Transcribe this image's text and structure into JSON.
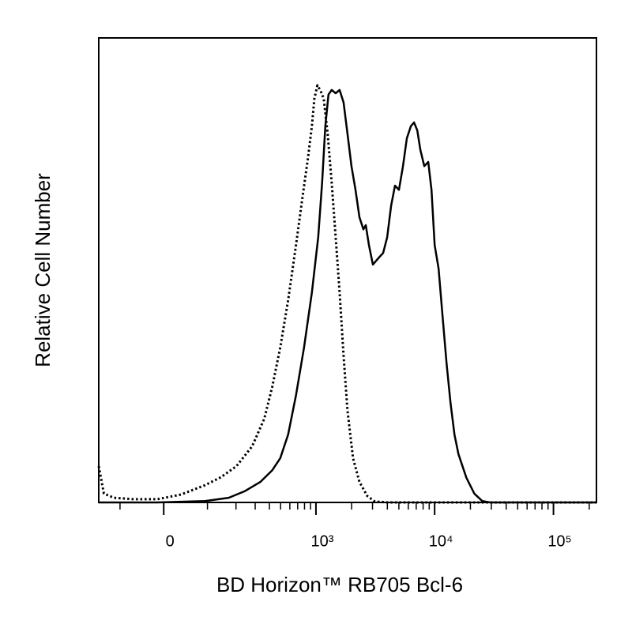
{
  "chart_data": {
    "type": "line",
    "xlabel": "BD Horizon™ RB705 Bcl-6",
    "ylabel": "Relative Cell Number",
    "xscale": "biexponential",
    "xlim": [
      -170,
      230000
    ],
    "ylim": [
      0,
      100
    ],
    "xticks": [
      0,
      {
        "value": 1000,
        "label": "10³"
      },
      {
        "value": 10000,
        "label": "10⁴"
      },
      {
        "value": 100000,
        "label": "10⁵"
      }
    ],
    "minor_xticks": [
      -100,
      100,
      200,
      300,
      400,
      500,
      600,
      700,
      800,
      900,
      2000,
      3000,
      4000,
      5000,
      6000,
      7000,
      8000,
      9000,
      20000,
      30000,
      40000,
      50000,
      60000,
      70000,
      80000,
      90000,
      200000
    ],
    "series": [
      {
        "color": "#000000",
        "dash": "solid",
        "x": [
          -170,
          -13,
          93,
          170,
          240,
          333,
          423,
          496,
          580,
          677,
          792,
          924,
          1045,
          1129,
          1200,
          1277,
          1358,
          1467,
          1584,
          1710,
          1847,
          1995,
          2155,
          2327,
          2513,
          2630,
          2798,
          3021,
          3314,
          3689,
          3984,
          4301,
          4641,
          5009,
          5418,
          5838,
          6310,
          6710,
          7140,
          7581,
          8190,
          8841,
          9408,
          10007,
          10794,
          11665,
          12600,
          13608,
          14690,
          15855,
          18500,
          21557,
          25137,
          29295,
          230000
        ],
        "values": [
          0,
          0,
          0.3,
          1.0,
          2.4,
          4.4,
          6.9,
          9.5,
          14.6,
          23.1,
          33.3,
          45.2,
          57.1,
          69.0,
          81.0,
          87.8,
          88.8,
          88.1,
          88.8,
          86.1,
          79.3,
          72.4,
          67.3,
          61.4,
          58.8,
          59.7,
          55.4,
          51.2,
          52.4,
          53.7,
          57.1,
          63.9,
          68.2,
          67.3,
          72.4,
          78.4,
          81.0,
          81.8,
          80.1,
          75.9,
          72.4,
          73.3,
          67.3,
          55.4,
          50.3,
          40.1,
          29.9,
          21.4,
          14.6,
          10.4,
          5.3,
          1.9,
          0.3,
          0,
          0
        ]
      },
      {
        "color": "#000000",
        "dash": "dotted",
        "x": [
          -170,
          -151,
          -118,
          -65,
          -13,
          36,
          93,
          141,
          202,
          282,
          361,
          423,
          496,
          580,
          677,
          768,
          856,
          924,
          969,
          1029,
          1094,
          1164,
          1257,
          1358,
          1467,
          1584,
          1710,
          1847,
          2058,
          2327,
          2709,
          3140,
          3984,
          230000
        ],
        "values": [
          7.8,
          1.9,
          1.0,
          0.7,
          0.7,
          1.7,
          3.7,
          5.4,
          7.8,
          12.1,
          18.0,
          24.8,
          33.3,
          43.5,
          55.4,
          65.6,
          74.1,
          81.0,
          86.9,
          89.8,
          88.6,
          86.9,
          79.3,
          69.0,
          57.1,
          45.2,
          31.6,
          19.7,
          9.5,
          4.4,
          1.4,
          0.2,
          0,
          0
        ]
      }
    ]
  }
}
